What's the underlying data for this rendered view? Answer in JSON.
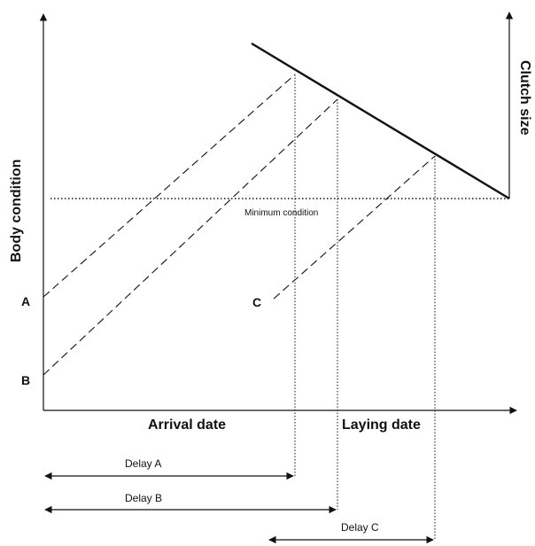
{
  "diagram": {
    "axes": {
      "x_label": "Arrival date",
      "x_label2": "Laying date",
      "y_left_label": "Body condition",
      "y_right_label": "Clutch size"
    },
    "threshold_label": "Minimum condition",
    "points": [
      {
        "id": "A",
        "label": "A"
      },
      {
        "id": "B",
        "label": "B"
      },
      {
        "id": "C",
        "label": "C"
      }
    ],
    "delays": [
      {
        "id": "A",
        "label": "Delay A"
      },
      {
        "id": "B",
        "label": "Delay B"
      },
      {
        "id": "C",
        "label": "Delay C"
      }
    ],
    "colors": {
      "line": "#111111"
    }
  }
}
